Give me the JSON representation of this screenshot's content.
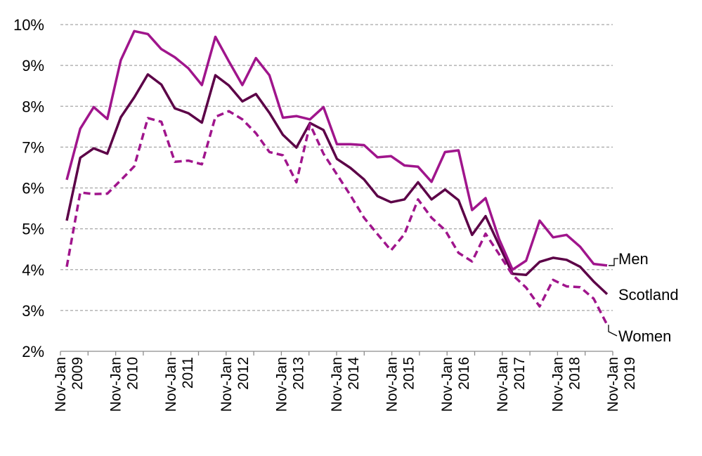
{
  "chart_data": {
    "type": "line",
    "ylim": [
      2,
      10
    ],
    "yticks": [
      "2%",
      "3%",
      "4%",
      "5%",
      "6%",
      "7%",
      "8%",
      "9%",
      "10%"
    ],
    "xtick_labels": [
      {
        "period": "Nov-Jan",
        "year": "2009"
      },
      {
        "period": "Nov-Jan",
        "year": "2010"
      },
      {
        "period": "Nov-Jan",
        "year": "2011"
      },
      {
        "period": "Nov-Jan",
        "year": "2012"
      },
      {
        "period": "Nov-Jan",
        "year": "2013"
      },
      {
        "period": "Nov-Jan",
        "year": "2014"
      },
      {
        "period": "Nov-Jan",
        "year": "2015"
      },
      {
        "period": "Nov-Jan",
        "year": "2016"
      },
      {
        "period": "Nov-Jan",
        "year": "2017"
      },
      {
        "period": "Nov-Jan",
        "year": "2018"
      },
      {
        "period": "Nov-Jan",
        "year": "2019"
      }
    ],
    "grid": true,
    "series": [
      {
        "name": "Men",
        "color": "#a0158c",
        "dash": "solid",
        "values": [
          6.2,
          7.45,
          7.98,
          7.69,
          9.13,
          9.84,
          9.77,
          9.4,
          9.2,
          8.93,
          8.52,
          9.7,
          9.1,
          8.52,
          9.18,
          8.76,
          7.72,
          7.76,
          7.68,
          7.98,
          7.07,
          7.07,
          7.05,
          6.75,
          6.78,
          6.55,
          6.52,
          6.15,
          6.88,
          6.92,
          5.46,
          5.75,
          4.75,
          4.0,
          4.22,
          5.2,
          4.79,
          4.85,
          4.56,
          4.14,
          4.1
        ]
      },
      {
        "name": "Scotland",
        "color": "#5c0047",
        "dash": "solid",
        "values": [
          5.2,
          6.74,
          6.97,
          6.84,
          7.73,
          8.22,
          8.78,
          8.53,
          7.95,
          7.83,
          7.6,
          8.76,
          8.51,
          8.12,
          8.3,
          7.84,
          7.3,
          6.99,
          7.59,
          7.42,
          6.71,
          6.49,
          6.21,
          5.8,
          5.65,
          5.72,
          6.14,
          5.72,
          5.96,
          5.7,
          4.85,
          5.31,
          4.6,
          3.9,
          3.87,
          4.19,
          4.29,
          4.24,
          4.07,
          3.71,
          3.4
        ]
      },
      {
        "name": "Women",
        "color": "#a0158c",
        "dash": "dashed",
        "values": [
          4.07,
          5.89,
          5.85,
          5.86,
          6.19,
          6.53,
          7.71,
          7.62,
          6.64,
          6.67,
          6.58,
          7.74,
          7.88,
          7.68,
          7.34,
          6.88,
          6.8,
          6.14,
          7.56,
          6.84,
          6.33,
          5.82,
          5.27,
          4.87,
          4.47,
          4.87,
          5.72,
          5.27,
          4.97,
          4.41,
          4.2,
          4.88,
          4.38,
          3.87,
          3.56,
          3.1,
          3.75,
          3.59,
          3.57,
          3.29,
          2.65
        ]
      }
    ]
  }
}
